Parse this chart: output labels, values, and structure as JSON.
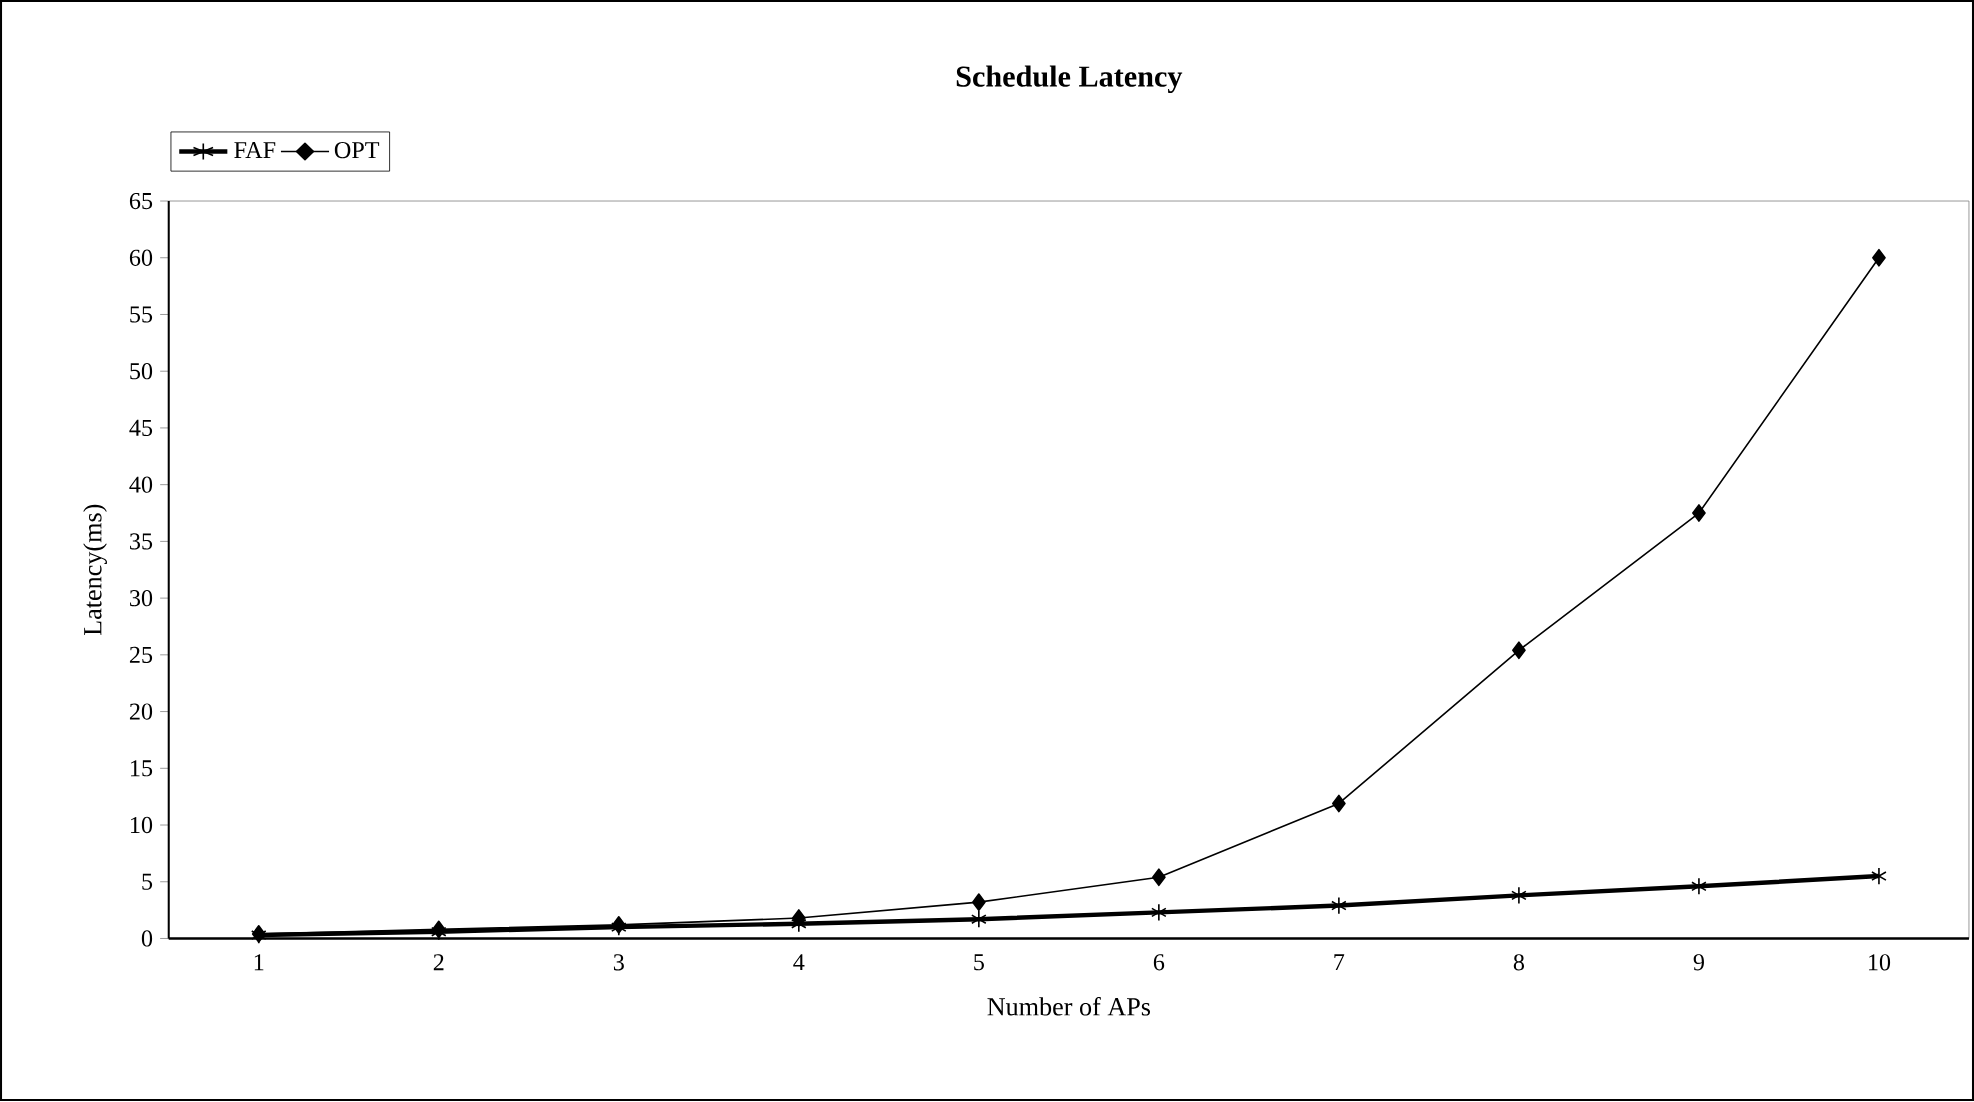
{
  "chart_data": {
    "type": "line",
    "title": "Schedule Latency",
    "xlabel": "Number of APs",
    "ylabel": "Latency(ms)",
    "categories": [
      "1",
      "2",
      "3",
      "4",
      "5",
      "6",
      "7",
      "8",
      "9",
      "10"
    ],
    "series": [
      {
        "name": "FAF",
        "color": "#000000",
        "marker": "cross",
        "values": [
          0.3,
          0.6,
          1.0,
          1.3,
          1.7,
          2.3,
          2.9,
          3.8,
          4.6,
          5.5
        ]
      },
      {
        "name": "OPT",
        "color": "#000000",
        "marker": "diamond",
        "values": [
          0.4,
          0.8,
          1.2,
          1.8,
          3.2,
          5.4,
          11.9,
          25.4,
          37.5,
          60
        ]
      }
    ],
    "ylim": [
      0,
      65
    ],
    "yticks": [
      0,
      5,
      10,
      15,
      20,
      25,
      30,
      35,
      40,
      45,
      50,
      55,
      60,
      65
    ],
    "grid": false,
    "legend": "top left",
    "line_style": "solid"
  }
}
